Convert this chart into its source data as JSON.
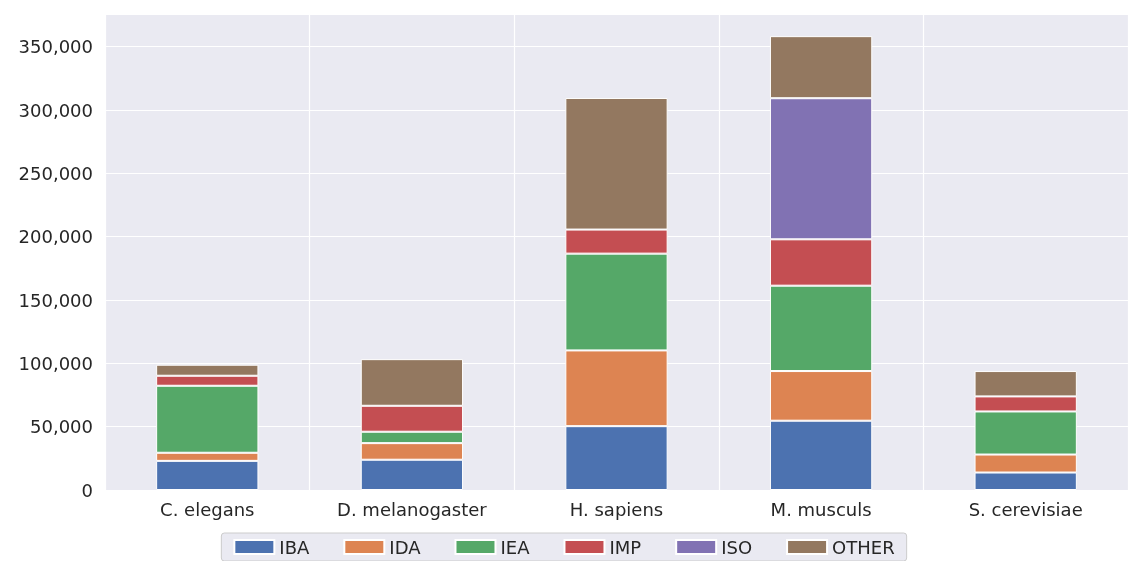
{
  "chart_data": {
    "type": "bar",
    "stacked": true,
    "categories": [
      "C. elegans",
      "D. melanogaster",
      "H. sapiens",
      "M. musculs",
      "S. cerevisiae"
    ],
    "series": [
      {
        "name": "IBA",
        "color": "#4c72b0",
        "values": [
          23000,
          23900,
          50400,
          54700,
          13800
        ]
      },
      {
        "name": "IDA",
        "color": "#dd8452",
        "values": [
          6400,
          13100,
          59800,
          39200,
          14200
        ]
      },
      {
        "name": "IEA",
        "color": "#55a868",
        "values": [
          52900,
          9000,
          76400,
          67400,
          34000
        ]
      },
      {
        "name": "IMP",
        "color": "#c44e52",
        "values": [
          7900,
          20500,
          19000,
          36600,
          11900
        ]
      },
      {
        "name": "ISO",
        "color": "#8172b3",
        "values": [
          null,
          null,
          null,
          111400,
          null
        ]
      },
      {
        "name": "OTHER",
        "color": "#937860",
        "values": [
          8700,
          36800,
          103900,
          49000,
          20000
        ]
      }
    ],
    "ylim": [
      0,
      375000
    ],
    "yticks": [
      {
        "value": 0,
        "label": "0"
      },
      {
        "value": 50000,
        "label": "50,000"
      },
      {
        "value": 100000,
        "label": "100,000"
      },
      {
        "value": 150000,
        "label": "150,000"
      },
      {
        "value": 200000,
        "label": "200,000"
      },
      {
        "value": 250000,
        "label": "250,000"
      },
      {
        "value": 300000,
        "label": "300,000"
      },
      {
        "value": 350000,
        "label": "350,000"
      }
    ],
    "grid": true,
    "legend": "bottom"
  }
}
